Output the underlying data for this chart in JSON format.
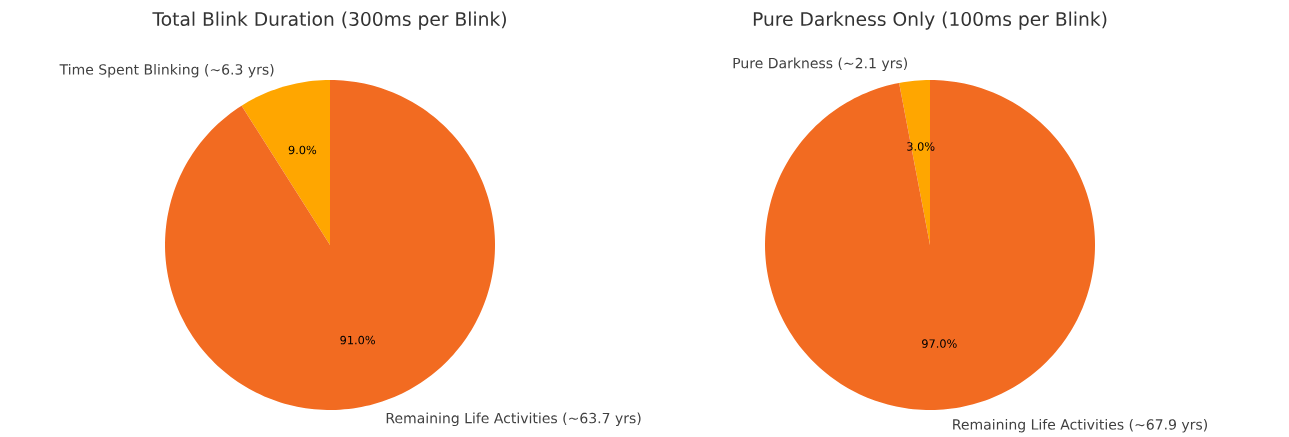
{
  "chart_data": [
    {
      "type": "pie",
      "title": "Total Blink Duration (300ms per Blink)",
      "categories": [
        "Time Spent Blinking (~6.3 yrs)",
        "Remaining Life Activities (~63.7 yrs)"
      ],
      "values": [
        9.0,
        91.0
      ],
      "colors": [
        "#ffa600",
        "#f26b21"
      ],
      "value_labels": [
        "9.0%",
        "91.0%"
      ]
    },
    {
      "type": "pie",
      "title": "Pure Darkness Only (100ms per Blink)",
      "categories": [
        "Pure Darkness (~2.1 yrs)",
        "Remaining Life Activities (~67.9 yrs)"
      ],
      "values": [
        3.0,
        97.0
      ],
      "colors": [
        "#ffa600",
        "#f26b21"
      ],
      "value_labels": [
        "3.0%",
        "97.0%"
      ]
    }
  ]
}
